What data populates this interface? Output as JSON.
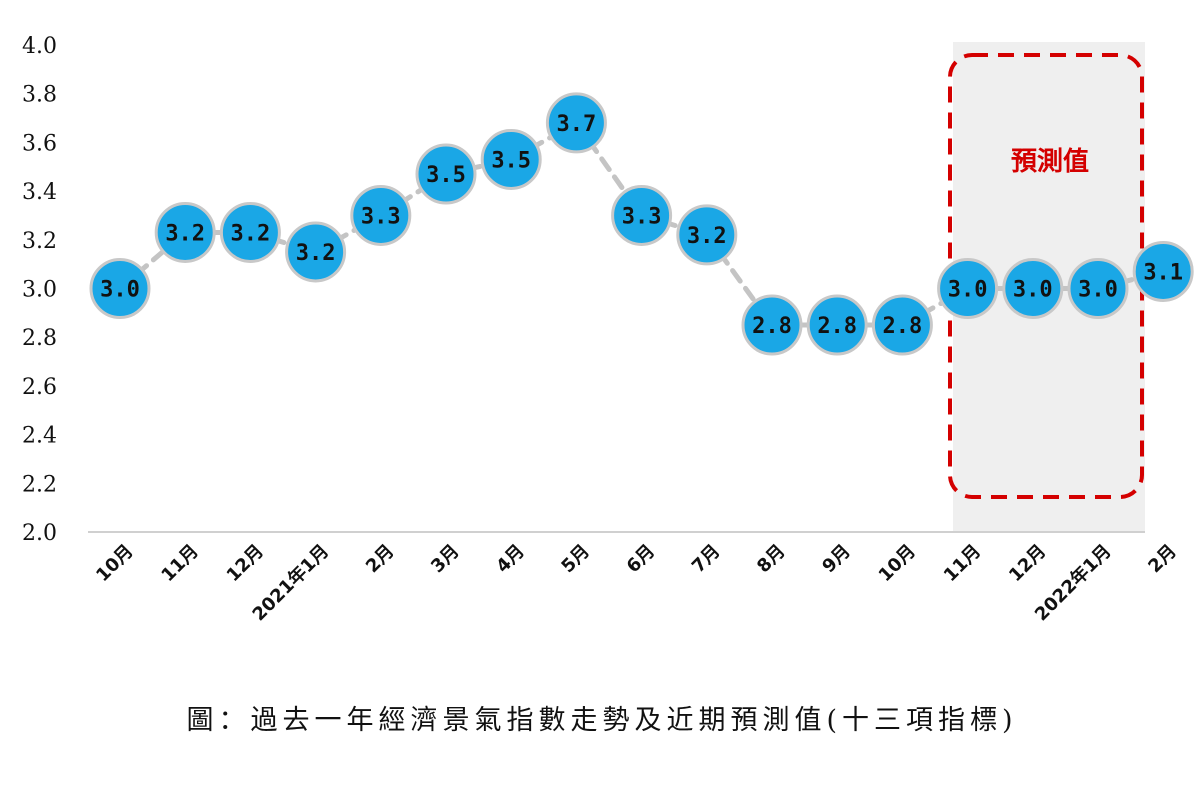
{
  "chart_data": {
    "type": "line",
    "categories": [
      "10月",
      "11月",
      "12月",
      "2021年1月",
      "2月",
      "3月",
      "4月",
      "5月",
      "6月",
      "7月",
      "8月",
      "9月",
      "10月",
      "11月",
      "12月",
      "2022年1月",
      "2月"
    ],
    "series": [
      {
        "values": [
          3.0,
          3.2,
          3.2,
          3.2,
          3.3,
          3.5,
          3.5,
          3.7,
          3.3,
          3.2,
          2.8,
          2.8,
          2.8,
          3.0,
          3.0,
          3.0,
          3.1
        ],
        "display": [
          3.0,
          3.23,
          3.23,
          3.15,
          3.3,
          3.47,
          3.53,
          3.68,
          3.3,
          3.22,
          2.85,
          2.85,
          2.85,
          3.0,
          3.0,
          3.0,
          3.07
        ],
        "labels": [
          "3.0",
          "3.2",
          "3.2",
          "3.2",
          "3.3",
          "3.5",
          "3.5",
          "3.7",
          "3.3",
          "3.2",
          "2.8",
          "2.8",
          "2.8",
          "3.0",
          "3.0",
          "3.0",
          "3.1"
        ]
      }
    ],
    "yticks": [
      "2.0",
      "2.2",
      "2.4",
      "2.6",
      "2.8",
      "3.0",
      "3.2",
      "3.4",
      "3.6",
      "3.8",
      "4.0"
    ],
    "ylim": [
      2.0,
      4.0
    ],
    "forecast": {
      "label": "預測值",
      "start_index": 13,
      "end_index": 16
    },
    "caption": "圖：過去一年經濟景氣指數走勢及近期預測值(十三項指標)",
    "grid": false,
    "colors": {
      "marker": "#1aa7e6",
      "marker_edge": "#c8c8c8",
      "line": "#c4c4c4",
      "forecast_bg": "#efefef",
      "forecast_border": "#d40000"
    }
  }
}
